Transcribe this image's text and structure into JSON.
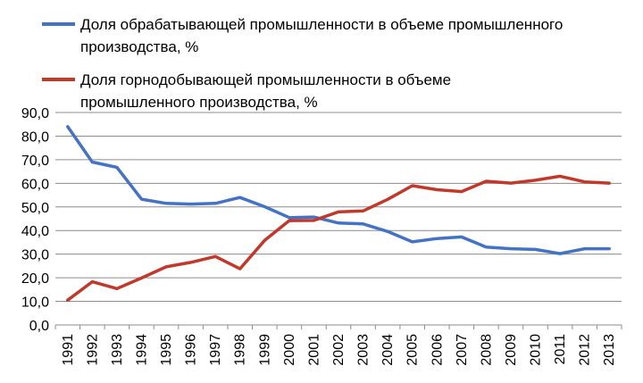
{
  "chart_data": {
    "type": "line",
    "x": [
      "1991",
      "1992",
      "1993",
      "1994",
      "1995",
      "1996",
      "1997",
      "1998",
      "1999",
      "2000",
      "2001",
      "2002",
      "2003",
      "2004",
      "2005",
      "2006",
      "2007",
      "2008",
      "2009",
      "2010",
      "2011",
      "2012",
      "2013"
    ],
    "ylim": [
      0,
      90
    ],
    "yticks": [
      "0,0",
      "10,0",
      "20,0",
      "30,0",
      "40,0",
      "50,0",
      "60,0",
      "70,0",
      "80,0",
      "90,0"
    ],
    "grid": true,
    "legend_position": "top",
    "series": [
      {
        "name_lines": [
          "Доля обрабатывающей промышленности в объеме промышленного",
          "производства, %"
        ],
        "color": "#4472C4",
        "values": [
          84.0,
          69.0,
          66.8,
          53.3,
          51.5,
          51.2,
          51.5,
          54.0,
          50.1,
          45.5,
          45.7,
          43.2,
          42.8,
          39.6,
          35.2,
          36.6,
          37.3,
          33.0,
          32.3,
          32.0,
          30.2,
          32.3,
          32.3
        ]
      },
      {
        "name_lines": [
          "Доля горнодобывающей промышленности в объеме",
          "промышленного производства, %"
        ],
        "color": "#C0392B",
        "values": [
          10.5,
          18.3,
          15.4,
          19.9,
          24.6,
          26.5,
          29.0,
          23.8,
          35.8,
          44.2,
          44.3,
          47.9,
          48.3,
          53.2,
          59.0,
          57.3,
          56.5,
          60.9,
          60.1,
          61.3,
          63.0,
          60.6,
          60.1
        ]
      }
    ]
  }
}
